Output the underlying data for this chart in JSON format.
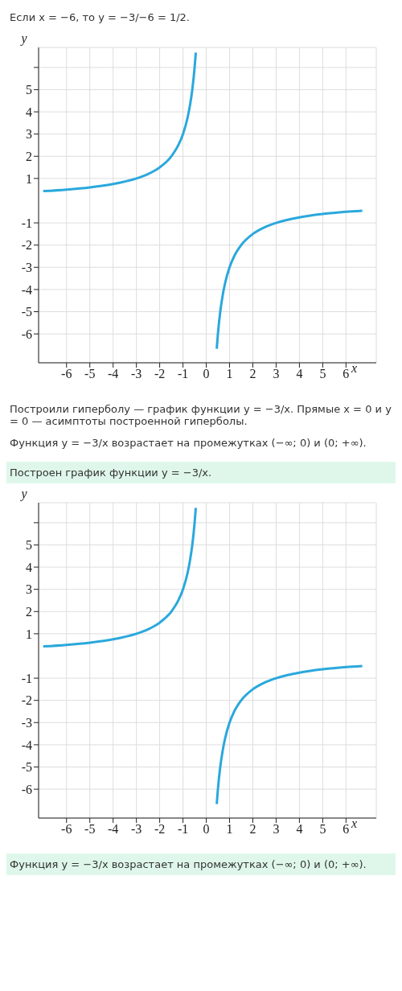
{
  "chart_data": [
    {
      "type": "line",
      "title": "Если x = −6, то y = −3/−6 = 1/2.",
      "xlabel": "x",
      "ylabel": "y",
      "xlim": [
        -7.2,
        7.3
      ],
      "ylim": [
        -7.3,
        6.9
      ],
      "xticks": [
        -6,
        -5,
        -4,
        -3,
        -2,
        -1,
        0,
        1,
        2,
        3,
        4,
        5,
        6
      ],
      "yticks": [
        -6,
        -5,
        -4,
        -3,
        -2,
        -1,
        1,
        2,
        3,
        4,
        5,
        {
          "value": 6,
          "label": null
        }
      ],
      "series": [
        {
          "color": "#2aa8dc",
          "x": [
            -7,
            -6,
            -5,
            -4,
            -3,
            -2.5,
            -2,
            -1.5,
            -1.2,
            -1,
            -0.8,
            -0.7,
            -0.6,
            -0.5,
            -0.45
          ],
          "values": [
            0.43,
            0.5,
            0.6,
            0.75,
            1,
            1.2,
            1.5,
            2,
            2.5,
            3,
            3.75,
            4.29,
            5,
            6,
            6.67
          ]
        },
        {
          "color": "#2aa8dc",
          "x": [
            0.45,
            0.5,
            0.6,
            0.7,
            0.8,
            1,
            1.2,
            1.5,
            2,
            2.5,
            3,
            4,
            5,
            6,
            6.7
          ],
          "values": [
            -6.67,
            -6,
            -5,
            -4.29,
            -3.75,
            -3,
            -2.5,
            -2,
            -1.5,
            -1.2,
            -1,
            -0.75,
            -0.6,
            -0.5,
            -0.45
          ]
        }
      ],
      "grid": true,
      "legend": false,
      "marker": "none",
      "line_style": "solid",
      "annotations": [
        "Построили гиперболу — график функции y = −3/x. Прямые x = 0 и y = 0 — асимптоты построенной гиперболы.",
        "Функция y = −3/x возрастает на промежутках (−∞; 0) и (0; +∞)."
      ]
    },
    {
      "type": "line",
      "title": "Построен график функции y = −3/x.",
      "xlabel": "x",
      "ylabel": "y",
      "xlim": [
        -7.2,
        7.3
      ],
      "ylim": [
        -7.3,
        6.9
      ],
      "xticks": [
        -6,
        -5,
        -4,
        -3,
        -2,
        -1,
        0,
        1,
        2,
        3,
        4,
        5,
        6
      ],
      "yticks": [
        -6,
        -5,
        -4,
        -3,
        -2,
        -1,
        1,
        2,
        3,
        4,
        5,
        {
          "value": 6,
          "label": null
        }
      ],
      "series": [
        {
          "color": "#2aa8dc",
          "x": [
            -7,
            -6,
            -5,
            -4,
            -3,
            -2.5,
            -2,
            -1.5,
            -1.2,
            -1,
            -0.8,
            -0.7,
            -0.6,
            -0.5,
            -0.45
          ],
          "values": [
            0.43,
            0.5,
            0.6,
            0.75,
            1,
            1.2,
            1.5,
            2,
            2.5,
            3,
            3.75,
            4.29,
            5,
            6,
            6.67
          ]
        },
        {
          "color": "#2aa8dc",
          "x": [
            0.45,
            0.5,
            0.6,
            0.7,
            0.8,
            1,
            1.2,
            1.5,
            2,
            2.5,
            3,
            4,
            5,
            6,
            6.7
          ],
          "values": [
            -6.67,
            -6,
            -5,
            -4.29,
            -3.75,
            -3,
            -2.5,
            -2,
            -1.5,
            -1.2,
            -1,
            -0.75,
            -0.6,
            -0.5,
            -0.45
          ]
        }
      ],
      "grid": true,
      "legend": false,
      "marker": "none",
      "line_style": "solid",
      "annotations": [
        "Функция y = −3/x возрастает на промежутках (−∞; 0) и (0; +∞)."
      ]
    }
  ]
}
